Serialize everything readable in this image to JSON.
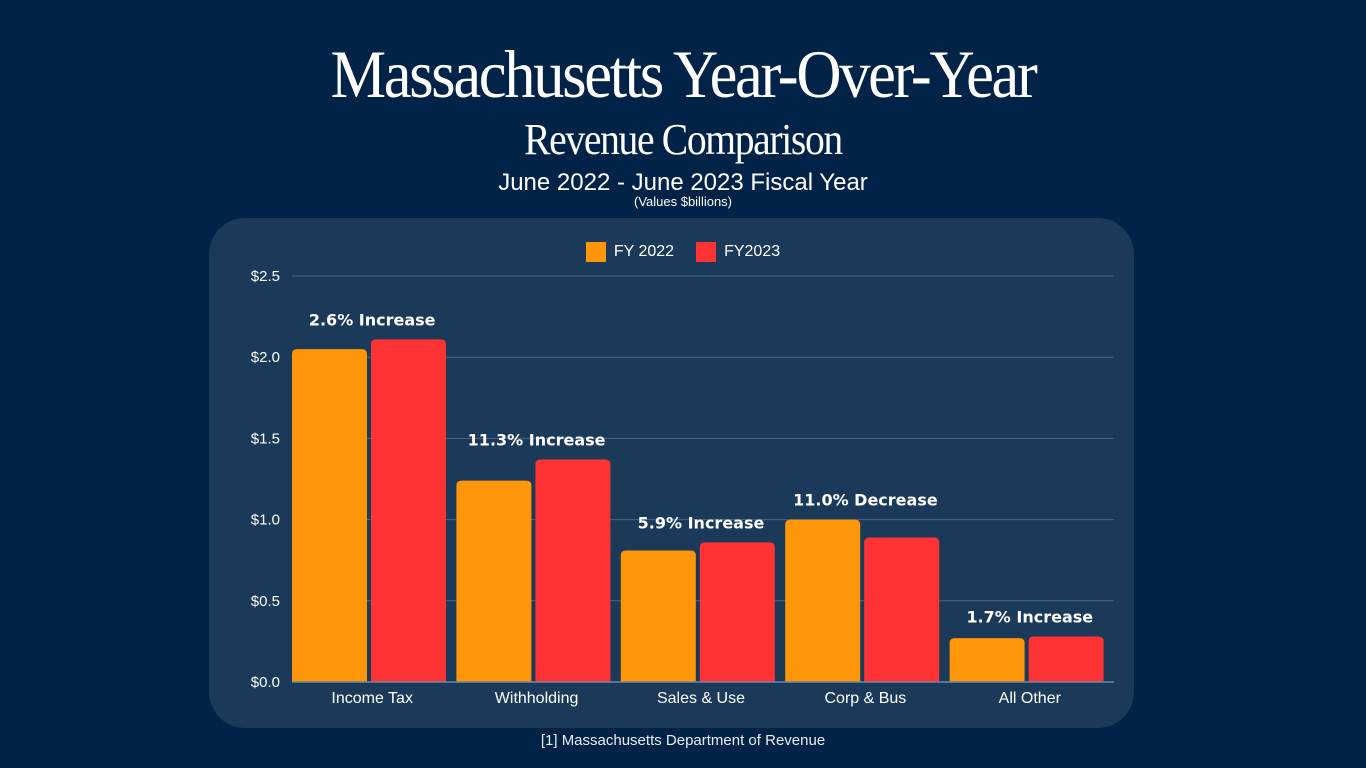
{
  "header": {
    "title": "Massachusetts Year-Over-Year",
    "subtitle": "Revenue Comparison",
    "period": "June 2022 - June 2023 Fiscal Year",
    "units_note": "(Values $billions)"
  },
  "footer": {
    "source": "[1] Massachusetts Department of  Revenue"
  },
  "colors": {
    "background": "#012348",
    "panel": "#1b3a5a",
    "fy2022": "#ff9609",
    "fy2023": "#ff3333",
    "gridline": "#4a6683",
    "text": "#ffffff"
  },
  "chart_data": {
    "type": "bar",
    "title": "Massachusetts Year-Over-Year Revenue Comparison",
    "subtitle": "June 2022 - June 2023 Fiscal Year",
    "xlabel": "",
    "ylabel": "Values $billions",
    "ylim": [
      0,
      2.5
    ],
    "yticks": [
      0,
      0.5,
      1.0,
      1.5,
      2.0,
      2.5
    ],
    "ytick_labels": [
      "$0.0",
      "$0.5",
      "$1.0",
      "$1.5",
      "$2.0",
      "$2.5"
    ],
    "grid": true,
    "legend_position": "top-center",
    "categories": [
      "Income Tax",
      "Withholding",
      "Sales & Use",
      "Corp & Bus",
      "All Other"
    ],
    "series": [
      {
        "name": "FY 2022",
        "color": "#ff9609",
        "values": [
          2.05,
          1.24,
          0.81,
          1.0,
          0.27
        ]
      },
      {
        "name": "FY2023",
        "color": "#ff3333",
        "values": [
          2.11,
          1.37,
          0.86,
          0.89,
          0.28
        ]
      }
    ],
    "annotations": [
      "2.6% Increase",
      "11.3% Increase",
      "5.9% Increase",
      "11.0% Decrease",
      "1.7% Increase"
    ]
  }
}
